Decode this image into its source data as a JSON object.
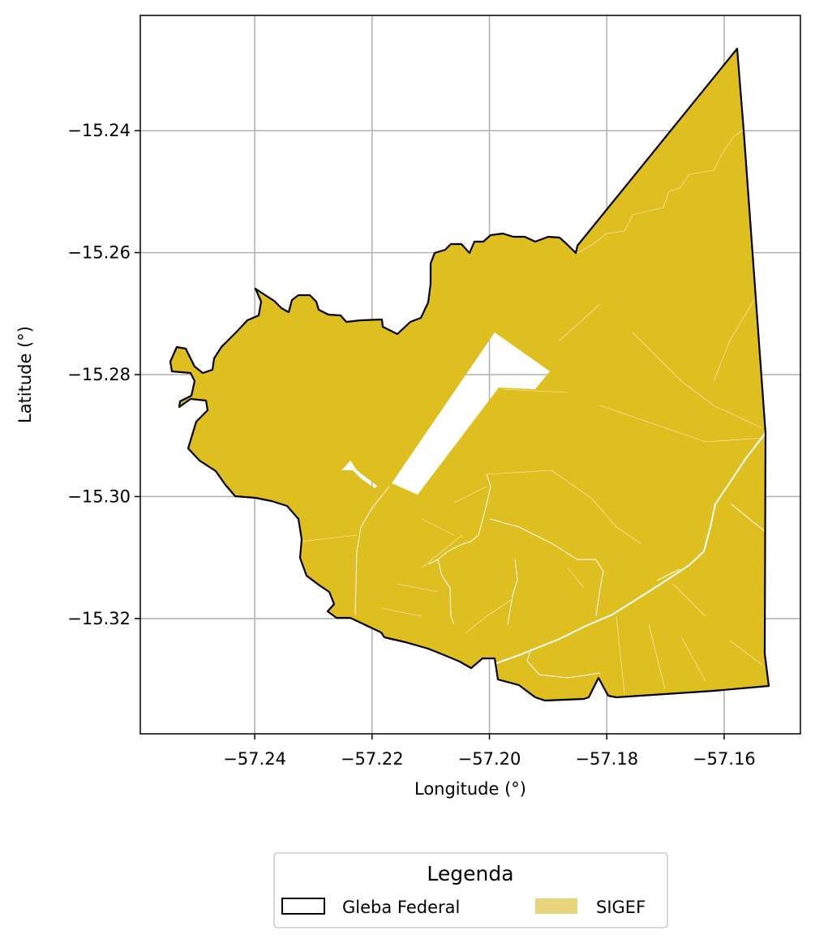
{
  "map": {
    "x_axis": {
      "label": "Longitude (°)",
      "range": [
        -57.2595,
        -57.147
      ],
      "ticks": [
        {
          "value": -57.24,
          "label": "−57.24"
        },
        {
          "value": -57.22,
          "label": "−57.22"
        },
        {
          "value": -57.2,
          "label": "−57.20"
        },
        {
          "value": -57.18,
          "label": "−57.18"
        },
        {
          "value": -57.16,
          "label": "−57.16"
        }
      ]
    },
    "y_axis": {
      "label": "Latitude (°)",
      "range": [
        -15.3389,
        -15.2211
      ],
      "ticks": [
        {
          "value": -15.24,
          "label": "−15.24"
        },
        {
          "value": -15.26,
          "label": "−15.26"
        },
        {
          "value": -15.28,
          "label": "−15.28"
        },
        {
          "value": -15.3,
          "label": "−15.30"
        },
        {
          "value": -15.32,
          "label": "−15.32"
        }
      ]
    },
    "grid": true,
    "colors": {
      "sigef_fill": "#DFBE20",
      "gleba_outline": "#000000",
      "grid": "#b0b0b0",
      "sigef_legend_patch": "#E8D47A"
    }
  },
  "legend": {
    "title": "Legenda",
    "placement": "bottom-center",
    "items": [
      {
        "label": "Gleba Federal",
        "icon": "outline-box-icon"
      },
      {
        "label": "SIGEF",
        "icon": "filled-box-icon"
      }
    ]
  }
}
